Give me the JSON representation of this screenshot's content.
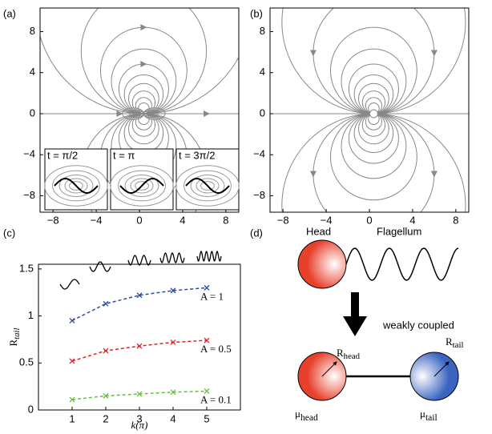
{
  "panel_labels": [
    "(a)",
    "(b)",
    "(c)",
    "(d)"
  ],
  "chart_data": [
    {
      "type": "streamline",
      "xlim": [
        -9.2,
        9.2
      ],
      "ylim": [
        -9.6,
        10.3
      ],
      "xticks": [
        {
          "value": -8,
          "label": "−8"
        },
        {
          "value": -4,
          "label": "−4"
        },
        0,
        4,
        8
      ],
      "yticks": [
        {
          "value": -8,
          "label": "−8"
        },
        {
          "value": -4,
          "label": "−4"
        },
        0,
        4,
        8
      ],
      "insets": [
        "t = π/2",
        "t = π",
        "t = 3π/2"
      ]
    },
    {
      "type": "streamline",
      "xlim": [
        -9.2,
        9.2
      ],
      "ylim": [
        -9.6,
        10.3
      ],
      "xticks": [
        {
          "value": -8,
          "label": "−8"
        },
        {
          "value": -4,
          "label": "−4"
        },
        0,
        4,
        8
      ],
      "yticks": [
        {
          "value": -8,
          "label": "−8"
        },
        {
          "value": -4,
          "label": "−4"
        },
        0,
        4,
        8
      ]
    },
    {
      "type": "line",
      "xlabel": "k(π)",
      "ylabel": {
        "symbol": "R",
        "sub": "tail"
      },
      "x": [
        1,
        2,
        3,
        4,
        5
      ],
      "xlim": [
        0,
        6
      ],
      "ylim": [
        0,
        1.55
      ],
      "xticks": [
        1,
        2,
        3,
        4,
        5
      ],
      "yticks": [
        0,
        0.5,
        1,
        1.5
      ],
      "series": [
        {
          "name": "A = 1",
          "color": "#2a4aa0",
          "values": [
            0.95,
            1.13,
            1.22,
            1.27,
            1.3
          ]
        },
        {
          "name": "A = 0.5",
          "color": "#e02424",
          "values": [
            0.52,
            0.63,
            0.68,
            0.72,
            0.74
          ]
        },
        {
          "name": "A = 0.1",
          "color": "#66c040",
          "values": [
            0.11,
            0.15,
            0.17,
            0.19,
            0.2
          ]
        }
      ]
    }
  ],
  "diagram": {
    "head": "Head",
    "flagellum": "Flagellum",
    "coupling": "weakly coupled",
    "r_head": {
      "symbol": "R",
      "sub": "head"
    },
    "r_tail": {
      "symbol": "R",
      "sub": "tail"
    },
    "mu_head": {
      "symbol": "μ",
      "sub": "head"
    },
    "mu_tail": {
      "symbol": "μ",
      "sub": "tail"
    }
  }
}
